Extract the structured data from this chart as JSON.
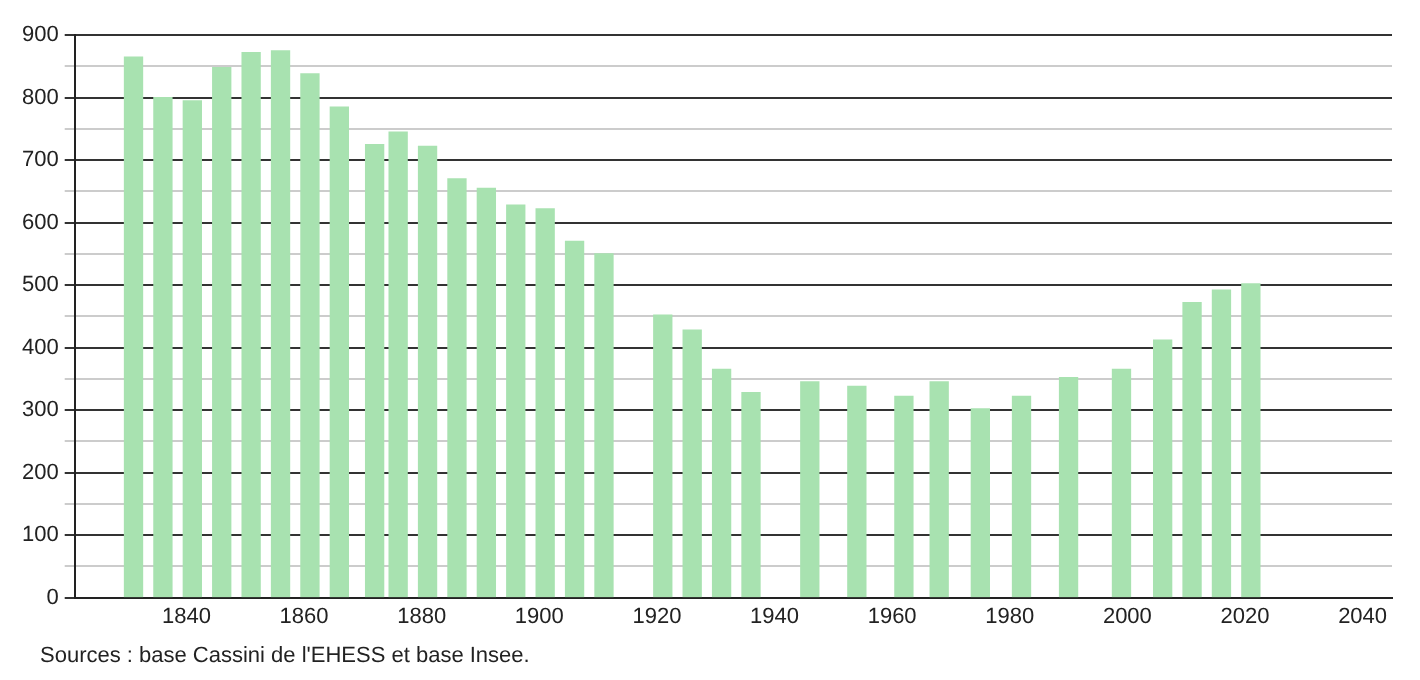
{
  "chart_data": {
    "type": "bar",
    "x": [
      1831,
      1836,
      1841,
      1846,
      1851,
      1856,
      1861,
      1866,
      1872,
      1876,
      1881,
      1886,
      1891,
      1896,
      1901,
      1906,
      1911,
      1921,
      1926,
      1931,
      1936,
      1946,
      1954,
      1962,
      1968,
      1975,
      1982,
      1990,
      1999,
      2006,
      2011,
      2016,
      2021
    ],
    "values": [
      865,
      800,
      795,
      848,
      872,
      875,
      838,
      785,
      725,
      745,
      722,
      670,
      655,
      628,
      622,
      570,
      550,
      452,
      428,
      365,
      328,
      345,
      338,
      322,
      345,
      302,
      322,
      352,
      365,
      412,
      472,
      492,
      502
    ],
    "color": "#a8e2b0",
    "xlim": [
      1821,
      2045
    ],
    "xticks": [
      1840,
      1860,
      1880,
      1900,
      1920,
      1940,
      1960,
      1980,
      2000,
      2020,
      2040
    ],
    "ylim": [
      0,
      900
    ],
    "yticks": [
      0,
      {
        "value": 50,
        "label": null
      },
      100,
      {
        "value": 150,
        "label": null
      },
      200,
      {
        "value": 250,
        "label": null
      },
      300,
      {
        "value": 350,
        "label": null
      },
      400,
      {
        "value": 450,
        "label": null
      },
      500,
      {
        "value": 550,
        "label": null
      },
      600,
      {
        "value": 650,
        "label": null
      },
      700,
      {
        "value": 750,
        "label": null
      },
      800,
      {
        "value": 850,
        "label": null
      },
      900
    ],
    "grid": "y",
    "legend": false,
    "annotations": [
      "Sources : base Cassini de l'EHESS et base Insee."
    ]
  }
}
